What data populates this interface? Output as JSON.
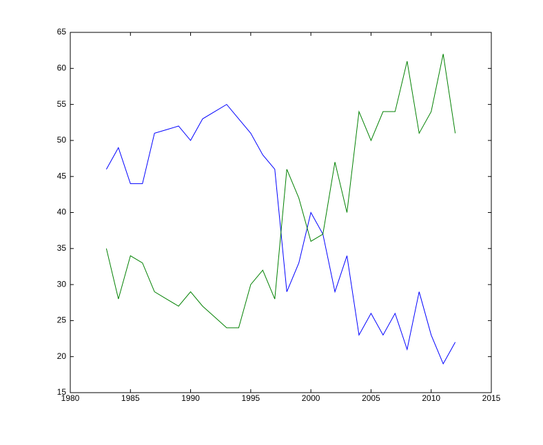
{
  "chart_data": {
    "type": "line",
    "x": [
      1983,
      1984,
      1985,
      1986,
      1987,
      1988,
      1989,
      1990,
      1991,
      1992,
      1993,
      1994,
      1995,
      1996,
      1997,
      1998,
      1999,
      2000,
      2001,
      2002,
      2003,
      2004,
      2005,
      2006,
      2007,
      2008,
      2009,
      2010,
      2011,
      2012
    ],
    "series": [
      {
        "color": "#0000ff",
        "values": [
          46,
          49,
          44,
          44,
          51,
          51.5,
          52,
          50,
          53,
          54,
          55,
          53,
          51,
          48,
          46,
          29,
          33,
          40,
          37,
          29,
          34,
          23,
          26,
          23,
          26,
          21,
          29,
          23,
          19,
          22
        ]
      },
      {
        "color": "#008000",
        "values": [
          35,
          28,
          34,
          33,
          29,
          28,
          27,
          29,
          27,
          25.5,
          24,
          24,
          30,
          32,
          28,
          46,
          42,
          36,
          37,
          47,
          40,
          54,
          50,
          54,
          54,
          61,
          51,
          54,
          62,
          51
        ]
      }
    ],
    "xlim": [
      1980,
      2015
    ],
    "xticks": [
      1980,
      1985,
      1990,
      1995,
      2000,
      2005,
      2010,
      2015
    ],
    "ylim": [
      15,
      65
    ],
    "yticks": [
      15,
      20,
      25,
      30,
      35,
      40,
      45,
      50,
      55,
      60,
      65
    ],
    "grid": false
  }
}
